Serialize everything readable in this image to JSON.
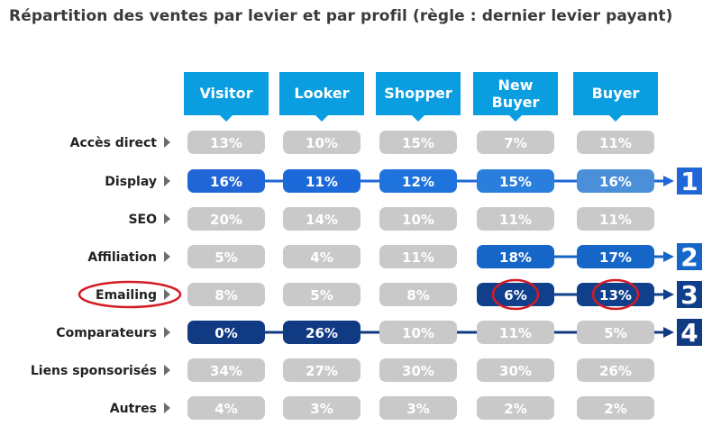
{
  "chart_data": {
    "type": "table",
    "title": "Répartition des ventes par levier et par profil (règle : dernier levier payant)",
    "columns": [
      "Visitor",
      "Looker",
      "Shopper",
      "New Buyer",
      "Buyer"
    ],
    "rows": [
      {
        "label": "Accès direct",
        "values": [
          "13%",
          "10%",
          "15%",
          "7%",
          "11%"
        ],
        "highlight": []
      },
      {
        "label": "Display",
        "values": [
          "16%",
          "11%",
          "12%",
          "15%",
          "16%"
        ],
        "highlight": [
          0,
          1,
          2,
          3,
          4
        ],
        "rank": "1"
      },
      {
        "label": "SEO",
        "values": [
          "20%",
          "14%",
          "10%",
          "11%",
          "11%"
        ],
        "highlight": []
      },
      {
        "label": "Affiliation",
        "values": [
          "5%",
          "4%",
          "11%",
          "18%",
          "17%"
        ],
        "highlight": [
          3,
          4
        ],
        "rank": "2"
      },
      {
        "label": "Emailing",
        "values": [
          "8%",
          "5%",
          "8%",
          "6%",
          "13%"
        ],
        "highlight": [
          3,
          4
        ],
        "rank": "3",
        "circled": true,
        "circled_cells": [
          3,
          4
        ]
      },
      {
        "label": "Comparateurs",
        "values": [
          "0%",
          "26%",
          "10%",
          "11%",
          "5%"
        ],
        "highlight": [
          0,
          1
        ],
        "rank": "4"
      },
      {
        "label": "Liens sponsorisés",
        "values": [
          "34%",
          "27%",
          "30%",
          "30%",
          "26%"
        ],
        "highlight": []
      },
      {
        "label": "Autres",
        "values": [
          "4%",
          "3%",
          "3%",
          "2%",
          "2%"
        ],
        "highlight": []
      }
    ]
  },
  "colors": {
    "header_bg": "#0a9de0",
    "cell_gray": "#c9c9c9",
    "text_gray": "#ffffff",
    "row1": [
      "#2166d6",
      "#1c6ad9",
      "#1f73dc",
      "#2b7fdc",
      "#4a8fd8"
    ],
    "row2": "#1666c8",
    "row3": "#103f8c",
    "row4": "#103a82",
    "circle": "#d41c24",
    "arrow_gray": "#6d6d6d"
  }
}
